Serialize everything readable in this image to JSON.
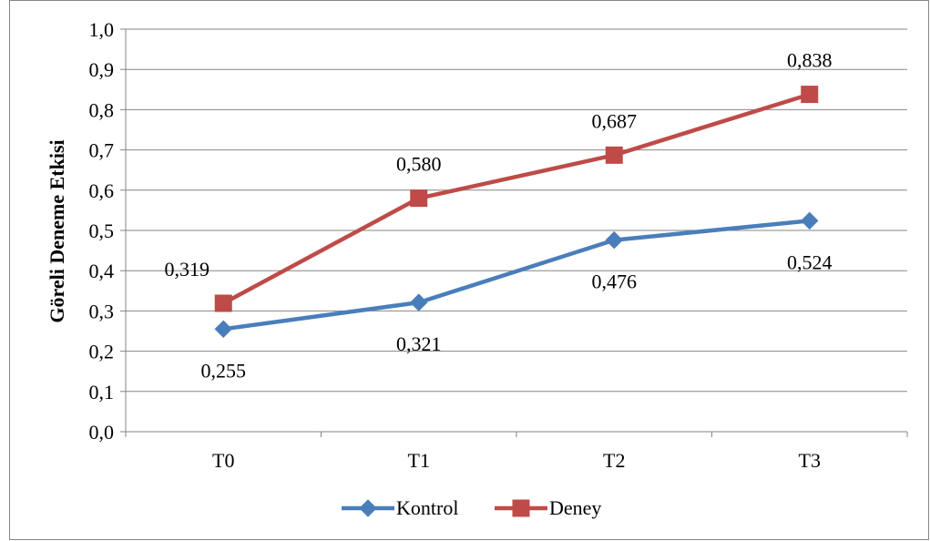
{
  "chart_data": {
    "type": "line",
    "title": "",
    "xlabel": "",
    "ylabel": "Göreli Deneme Etkisi",
    "categories": [
      "T0",
      "T1",
      "T2",
      "T3"
    ],
    "ylim": [
      0,
      1
    ],
    "yticks": [
      "0,0",
      "0,1",
      "0,2",
      "0,3",
      "0,4",
      "0,5",
      "0,6",
      "0,7",
      "0,8",
      "0,9",
      "1,0"
    ],
    "grid": true,
    "legend_position": "bottom",
    "series": [
      {
        "name": "Kontrol",
        "values": [
          0.255,
          0.321,
          0.476,
          0.524
        ],
        "labels": [
          "0,255",
          "0,321",
          "0,476",
          "0,524"
        ],
        "label_position": "below",
        "color": "#4a7ebb",
        "marker": "diamond"
      },
      {
        "name": "Deney",
        "values": [
          0.319,
          0.58,
          0.687,
          0.838
        ],
        "labels": [
          "0,319",
          "0,580",
          "0,687",
          "0,838"
        ],
        "label_position": "above",
        "color": "#be4b48",
        "marker": "square"
      }
    ]
  }
}
